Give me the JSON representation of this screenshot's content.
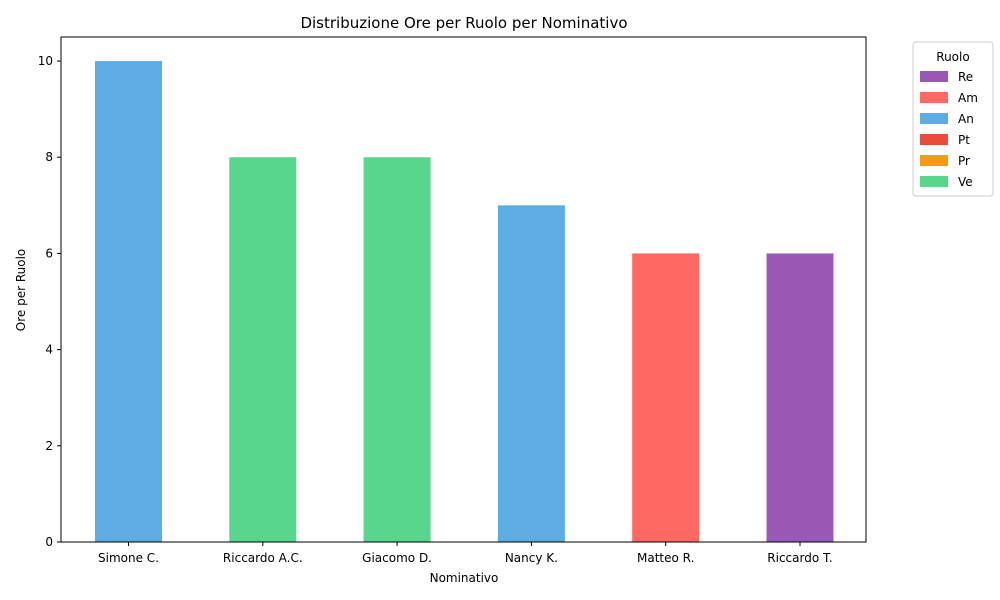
{
  "chart_data": {
    "type": "bar",
    "stacked": true,
    "title": "Distribuzione Ore per Ruolo per Nominativo",
    "xlabel": "Nominativo",
    "ylabel": "Ore per Ruolo",
    "categories": [
      "Simone C.",
      "Riccardo A.C.",
      "Giacomo D.",
      "Nancy K.",
      "Matteo R.",
      "Riccardo T."
    ],
    "ylim": [
      0,
      10.5
    ],
    "yticks": [
      0,
      2,
      4,
      6,
      8,
      10
    ],
    "grid": false,
    "legend": {
      "title": "Ruolo",
      "placement": "outside-top-right"
    },
    "series": [
      {
        "name": "Re",
        "color": "#9b59b6",
        "values": [
          0,
          0,
          0,
          0,
          0,
          6
        ]
      },
      {
        "name": "Am",
        "color": "#ff6961",
        "values": [
          0,
          0,
          0,
          0,
          6,
          0
        ]
      },
      {
        "name": "An",
        "color": "#5dade2",
        "values": [
          10,
          0,
          0,
          7,
          0,
          0
        ]
      },
      {
        "name": "Pt",
        "color": "#e74c3c",
        "values": [
          0,
          0,
          0,
          0,
          0,
          0
        ]
      },
      {
        "name": "Pr",
        "color": "#f39c12",
        "values": [
          0,
          0,
          0,
          0,
          0,
          0
        ]
      },
      {
        "name": "Ve",
        "color": "#58d68d",
        "values": [
          0,
          8,
          8,
          0,
          0,
          0
        ]
      }
    ]
  }
}
